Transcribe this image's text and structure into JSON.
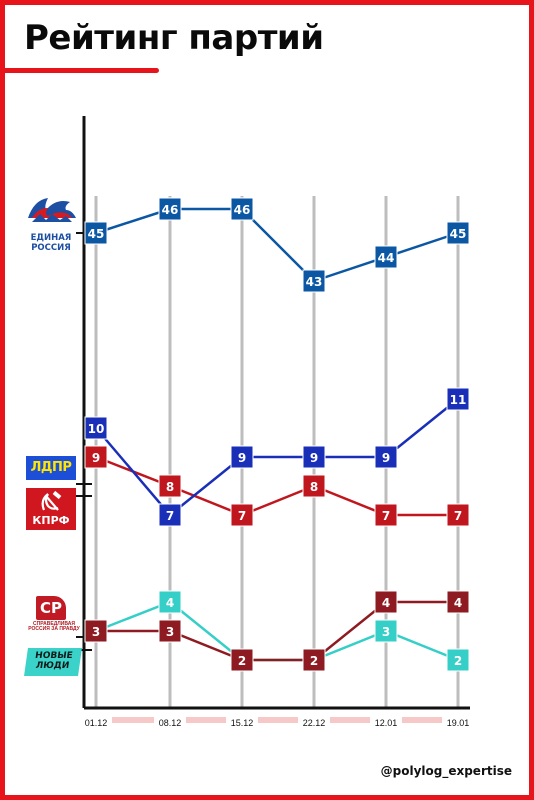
{
  "title": "Рейтинг партий",
  "watermark": "@polylog_expertise",
  "logos": {
    "er": {
      "line1": "ЕДИНАЯ",
      "line2": "РОССИЯ",
      "icon": "bear-icon"
    },
    "ldpr": {
      "text": "ЛДПР"
    },
    "kprf": {
      "text": "КПРФ",
      "icon": "hammer-sickle-icon"
    },
    "sr": {
      "mark": "СР",
      "text": "СПРАВЕДЛИВАЯ РОССИЯ ЗА ПРАВДУ"
    },
    "nl": {
      "line1": "НОВЫЕ",
      "line2": "ЛЮДИ"
    }
  },
  "colors": {
    "er": "#0b57a4",
    "ldpr": "#1a2fb8",
    "kprf": "#c0161e",
    "sr": "#8e1b22",
    "nl": "#35cfc7",
    "frame": "#e8141c",
    "axis": "#111111",
    "grid": "#bdbdbd",
    "band": "#f7c8c8"
  },
  "chart_data": {
    "type": "line",
    "categories": [
      "01.12",
      "08.12",
      "15.12",
      "22.12",
      "12.01",
      "19.01"
    ],
    "series": [
      {
        "key": "er",
        "values": [
          45,
          46,
          46,
          43,
          44,
          45
        ]
      },
      {
        "key": "ldpr",
        "values": [
          10,
          7,
          9,
          9,
          9,
          11
        ]
      },
      {
        "key": "kprf",
        "values": [
          9,
          8,
          7,
          8,
          7,
          7
        ]
      },
      {
        "key": "sr",
        "values": [
          3,
          3,
          2,
          2,
          4,
          4
        ]
      },
      {
        "key": "nl",
        "values": [
          3,
          4,
          2,
          2,
          3,
          2
        ]
      }
    ],
    "y_axis_labels": false,
    "grid": "vertical"
  }
}
